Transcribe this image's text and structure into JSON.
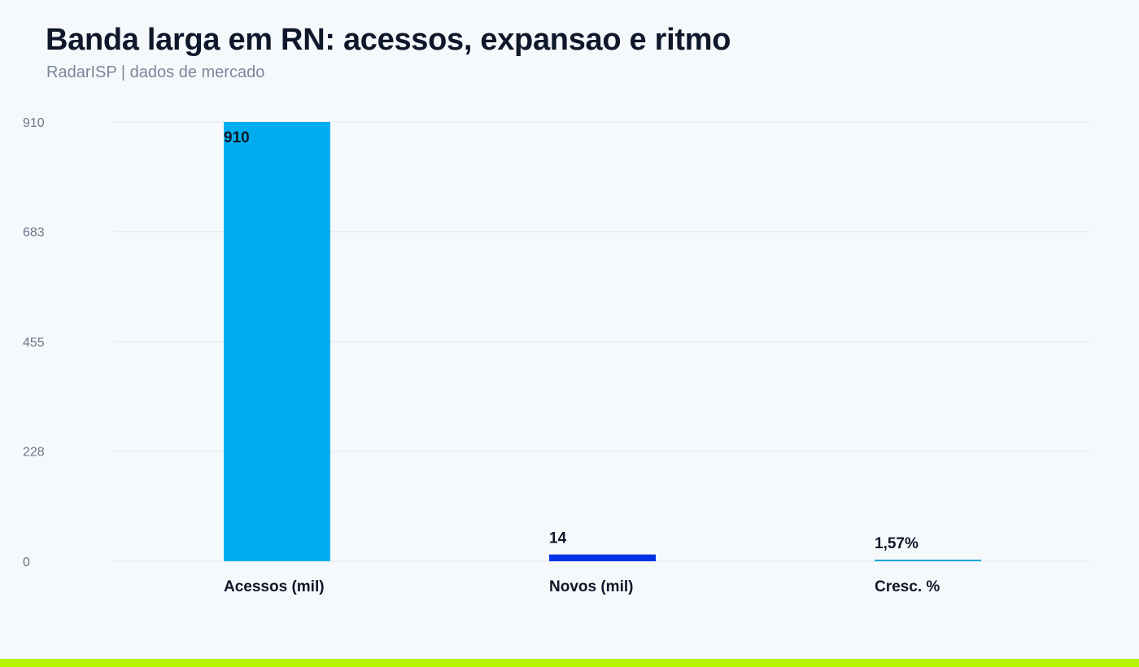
{
  "header": {
    "title": "Banda larga em RN: acessos, expansao e ritmo",
    "subtitle": "RadarISP | dados de mercado"
  },
  "colors": {
    "grid": "#e3e8ee",
    "axis_text": "#6b7688",
    "label_text": "#0f172a",
    "accent_bar": "#b6f500"
  },
  "chart_data": {
    "type": "bar",
    "categories": [
      "Acessos (mil)",
      "Novos (mil)",
      "Cresc. %"
    ],
    "values": [
      910,
      14,
      1.57
    ],
    "value_labels": [
      "910",
      "14",
      "1,57%"
    ],
    "bar_colors": [
      "#00aeef",
      "#0033e6",
      "#1aa8d6"
    ],
    "yticks": [
      "0",
      "228",
      "455",
      "683",
      "910"
    ],
    "ylim": [
      0,
      910
    ],
    "grid": true
  }
}
